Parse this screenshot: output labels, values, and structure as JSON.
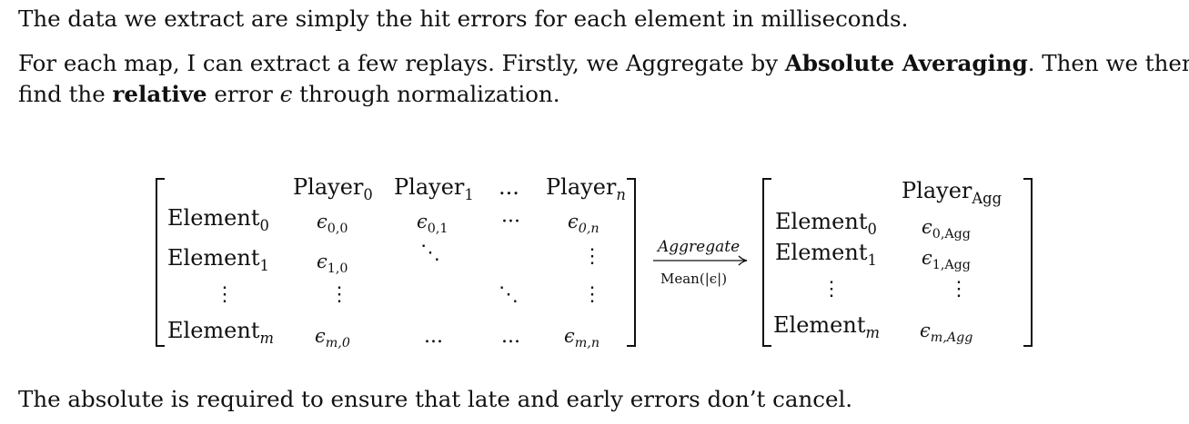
{
  "paragraph1": "The data we extract are simply the hit errors for each element in milliseconds.",
  "paragraph2": {
    "line1_a": "For each map, I can extract a few replays. Firstly, we Aggregate by ",
    "line1_bold": "Absolute Averaging",
    "line1_b": ". Then we then",
    "line2_a": "find the ",
    "line2_bold": "relative",
    "line2_b": " error ",
    "line2_eps": "ϵ",
    "line2_c": " through normalization."
  },
  "paragraph3": "The absolute is required to ensure that late and early errors don’t cancel.",
  "left_matrix": {
    "column_headers": [
      {
        "base": "Player",
        "sub": "0"
      },
      {
        "base": "Player",
        "sub": "1"
      },
      {
        "base": "...",
        "sub": ""
      },
      {
        "base": "Player",
        "sub": "n"
      }
    ],
    "row_headers": [
      {
        "base": "Element",
        "sub": "0"
      },
      {
        "base": "Element",
        "sub": "1"
      },
      {
        "base": "⋮",
        "sub": ""
      },
      {
        "base": "Element",
        "sub": "m"
      }
    ],
    "cells": {
      "r0c0": "0,0",
      "r0c1": "0,1",
      "r0c3": "0,n",
      "r1c0": "1,0",
      "r3c0": "m,0",
      "r3c3": "m,n"
    }
  },
  "arrow": {
    "top_label": "Aggregate",
    "bottom_label": "Mean(|ϵ|)"
  },
  "right_matrix": {
    "column_header": {
      "base": "Player",
      "sub": "Agg"
    },
    "row_headers": [
      {
        "base": "Element",
        "sub": "0"
      },
      {
        "base": "Element",
        "sub": "1"
      },
      {
        "base": "⋮",
        "sub": ""
      },
      {
        "base": "Element",
        "sub": "m"
      }
    ],
    "cells": [
      "0,Agg",
      "1,Agg",
      "m,Agg"
    ]
  },
  "symbols": {
    "epsilon": "ϵ",
    "cdots": "···",
    "ldots": "...",
    "vdots": "⋮",
    "ddots": "⋱"
  }
}
